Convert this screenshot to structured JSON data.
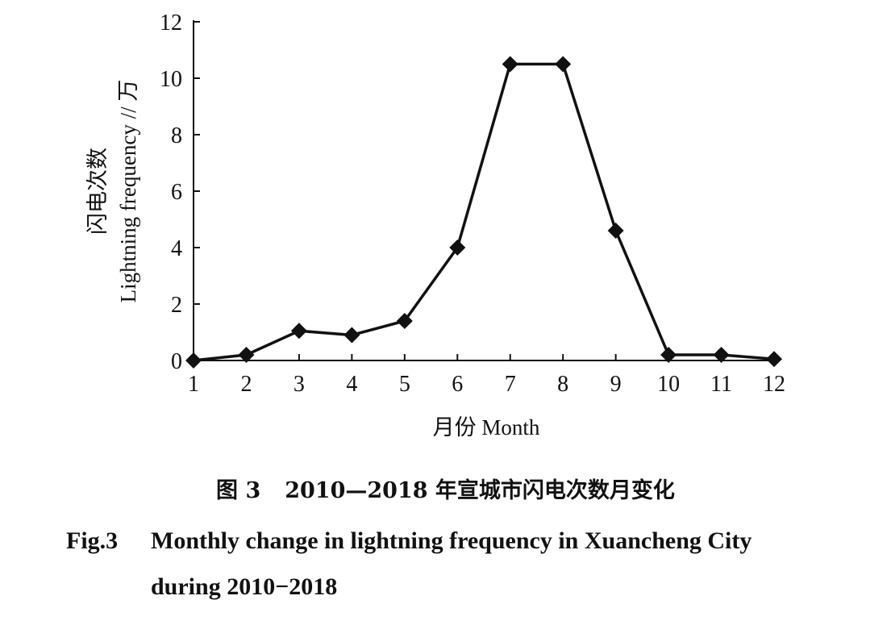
{
  "chart_data": {
    "type": "line",
    "xlabel": "月份 Month",
    "ylabel_cn": "闪电次数",
    "ylabel_en": "Lightning frequency // 万",
    "x": [
      1,
      2,
      3,
      4,
      5,
      6,
      7,
      8,
      9,
      10,
      11,
      12
    ],
    "x_tick_labels": [
      "1",
      "2",
      "3",
      "4",
      "5",
      "6",
      "7",
      "8",
      "9",
      "10",
      "11",
      "12"
    ],
    "y_ticks": [
      0,
      2,
      4,
      6,
      8,
      10,
      12
    ],
    "y_tick_labels": [
      "0",
      "2",
      "4",
      "6",
      "8",
      "10",
      "12"
    ],
    "ylim": [
      0,
      12
    ],
    "xlim": [
      1,
      12
    ],
    "grid": false,
    "marker": "diamond",
    "line_color": "#111111",
    "series": [
      {
        "values": [
          0.0,
          0.2,
          1.05,
          0.9,
          1.4,
          4.0,
          10.5,
          10.5,
          4.6,
          0.2,
          0.2,
          0.05
        ]
      }
    ]
  },
  "caption": {
    "cn_label": "图 3",
    "cn_text": "2010—2018 年宣城市闪电次数月变化",
    "en_label": "Fig.3",
    "en_text_line1": "Monthly change in lightning frequency in Xuancheng City",
    "en_text_line2": "during 2010−2018"
  }
}
